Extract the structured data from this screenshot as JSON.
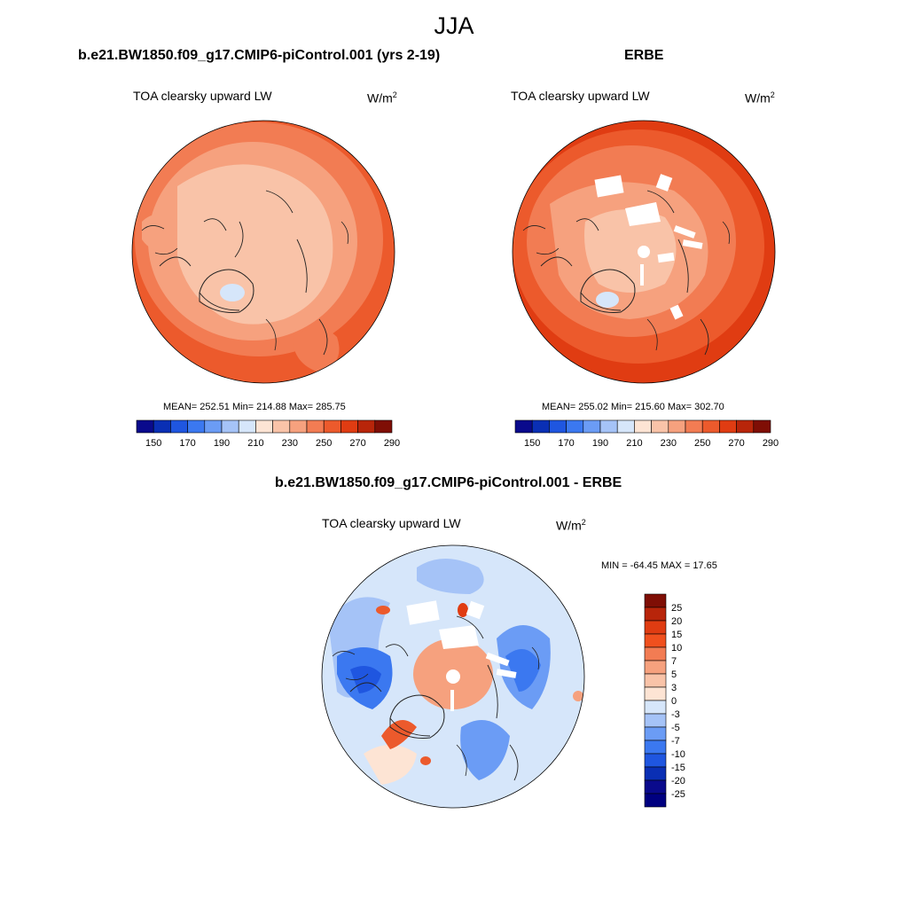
{
  "season": "JJA",
  "panels": [
    {
      "case_title": "b.e21.BW1850.f09_g17.CMIP6-piControl.001 (yrs 2-19)",
      "variable": "TOA clearsky upward LW",
      "unit_base": "W/m",
      "unit_exp": "2",
      "stats": "MEAN= 252.51  Min= 214.88  Max= 285.75"
    },
    {
      "case_title": "ERBE",
      "variable": "TOA clearsky upward LW",
      "unit_base": "W/m",
      "unit_exp": "2",
      "stats": "MEAN= 255.02  Min= 215.60  Max= 302.70"
    },
    {
      "case_title": "b.e21.BW1850.f09_g17.CMIP6-piControl.001 - ERBE",
      "variable": "TOA clearsky upward LW",
      "unit_base": "W/m",
      "unit_exp": "2",
      "stats": "MIN = -64.45 MAX =  17.65"
    }
  ],
  "colorbar_abs": {
    "tick_labels": [
      "150",
      "170",
      "190",
      "210",
      "230",
      "250",
      "270",
      "290"
    ],
    "colors": [
      "#0a0a8c",
      "#0a2fb4",
      "#1f56e0",
      "#3b78f0",
      "#6b9cf5",
      "#a5c3f7",
      "#d6e6fa",
      "#fde4d4",
      "#f9c3a8",
      "#f6a17e",
      "#f27c53",
      "#ec5a2c",
      "#e03c12",
      "#b8250a",
      "#7f0e05"
    ]
  },
  "colorbar_diff": {
    "tick_labels": [
      "25",
      "20",
      "15",
      "10",
      "7",
      "5",
      "3",
      "0",
      "-3",
      "-5",
      "-7",
      "-10",
      "-15",
      "-20",
      "-25"
    ],
    "colors": [
      "#7f0e05",
      "#b8250a",
      "#e03c12",
      "#f0501e",
      "#f27c53",
      "#f6a17e",
      "#f9c3a8",
      "#fde4d4",
      "#d6e6fa",
      "#a5c3f7",
      "#6b9cf5",
      "#3b78f0",
      "#1f56e0",
      "#0a2fb4",
      "#0a0a8c",
      "#000080"
    ]
  },
  "chart_data": [
    {
      "type": "heatmap",
      "title": "TOA clearsky upward LW",
      "subtitle": "b.e21.BW1850.f09_g17.CMIP6-piControl.001 (yrs 2-19)",
      "projection": "north-polar-stereographic",
      "units": "W/m2",
      "mean": 252.51,
      "min": 214.88,
      "max": 285.75,
      "contour_levels": [
        150,
        160,
        170,
        180,
        190,
        200,
        210,
        220,
        230,
        240,
        250,
        260,
        270,
        280,
        290
      ]
    },
    {
      "type": "heatmap",
      "title": "TOA clearsky upward LW",
      "subtitle": "ERBE",
      "projection": "north-polar-stereographic",
      "units": "W/m2",
      "mean": 255.02,
      "min": 215.6,
      "max": 302.7,
      "contour_levels": [
        150,
        160,
        170,
        180,
        190,
        200,
        210,
        220,
        230,
        240,
        250,
        260,
        270,
        280,
        290
      ]
    },
    {
      "type": "heatmap",
      "title": "TOA clearsky upward LW",
      "subtitle": "b.e21.BW1850.f09_g17.CMIP6-piControl.001 - ERBE",
      "projection": "north-polar-stereographic",
      "units": "W/m2",
      "min": -64.45,
      "max": 17.65,
      "contour_levels": [
        -25,
        -20,
        -15,
        -10,
        -7,
        -5,
        -3,
        0,
        3,
        5,
        7,
        10,
        15,
        20,
        25
      ]
    }
  ]
}
